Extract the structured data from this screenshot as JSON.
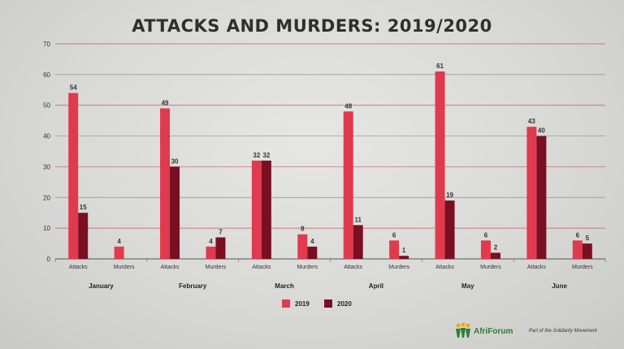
{
  "chart_data": {
    "type": "bar",
    "title": "ATTACKS AND MURDERS: 2019/2020",
    "ylim": [
      0,
      70
    ],
    "yticks": [
      0,
      10,
      20,
      30,
      40,
      50,
      60,
      70
    ],
    "grid": true,
    "legend_position": "bottom-center",
    "months": [
      "January",
      "February",
      "March",
      "April",
      "May",
      "June"
    ],
    "subcategories": [
      "Attacks",
      "Murders"
    ],
    "series": [
      {
        "name": "2019",
        "color": "#e03a4e",
        "values": [
          [
            54,
            4
          ],
          [
            49,
            4
          ],
          [
            32,
            8
          ],
          [
            48,
            6
          ],
          [
            61,
            6
          ],
          [
            43,
            6
          ]
        ]
      },
      {
        "name": "2020",
        "color": "#7a0f22",
        "values": [
          [
            15,
            null
          ],
          [
            30,
            7
          ],
          [
            32,
            4
          ],
          [
            11,
            1
          ],
          [
            19,
            2
          ],
          [
            40,
            5
          ]
        ]
      }
    ],
    "data_labels": [
      [
        [
          "54",
          "15"
        ],
        [
          "4",
          ""
        ]
      ],
      [
        [
          "49",
          "30"
        ],
        [
          "4",
          "7"
        ]
      ],
      [
        [
          "32",
          "32"
        ],
        [
          "8",
          "4"
        ]
      ],
      [
        [
          "48",
          "11"
        ],
        [
          "6",
          "1"
        ]
      ],
      [
        [
          "61",
          "19"
        ],
        [
          "6",
          "2"
        ]
      ],
      [
        [
          "43",
          "40"
        ],
        [
          "6",
          "5"
        ]
      ]
    ]
  },
  "footer": {
    "brand": "AfriForum",
    "tagline": "Part of the Solidarity Movement",
    "brand_color": "#2e7d32",
    "logo_icon": "afriforum-figures-logo"
  }
}
